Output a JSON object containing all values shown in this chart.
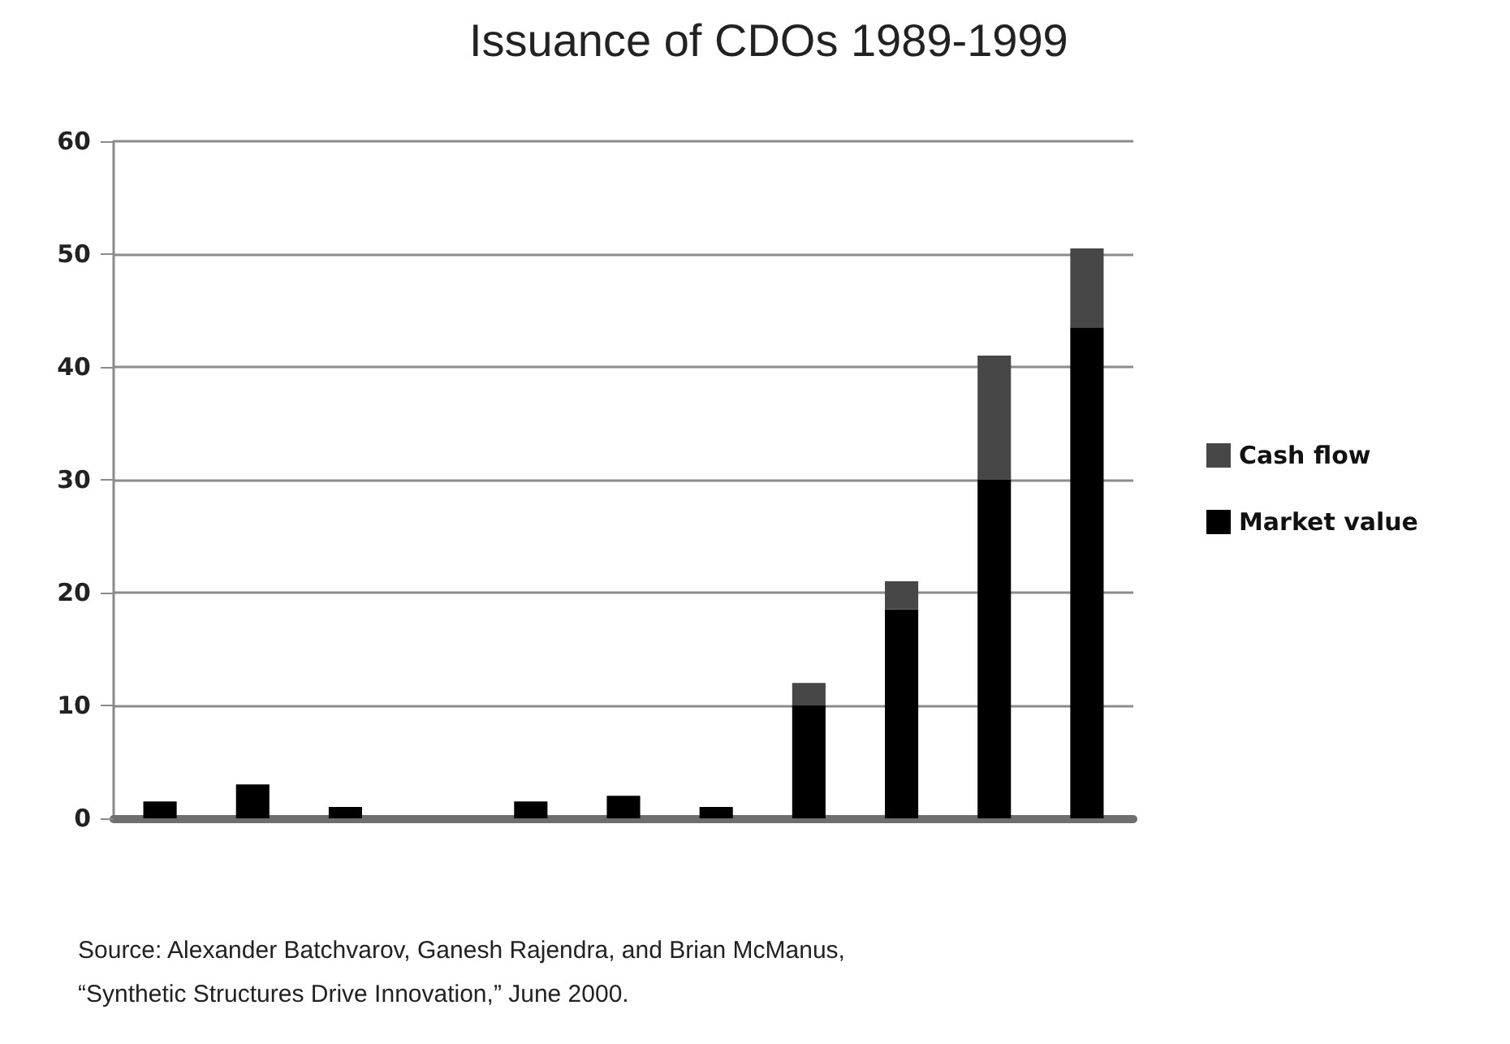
{
  "chart_data": {
    "type": "bar",
    "title": "Issuance of CDOs 1989-1999",
    "categories": [
      null,
      null,
      null,
      null,
      null,
      null,
      null,
      null,
      null,
      null,
      null
    ],
    "stacked": true,
    "series": [
      {
        "name": "Market value",
        "color": "#000000",
        "values": [
          1.5,
          3,
          1,
          0,
          1.5,
          2,
          1,
          10,
          18.5,
          30,
          43.5
        ]
      },
      {
        "name": "Cash flow",
        "color": "#474747",
        "values": [
          0,
          0,
          0,
          0,
          0,
          0,
          0,
          2,
          2.5,
          11,
          7
        ]
      }
    ],
    "ylim": [
      0,
      60
    ],
    "yticks": [
      0,
      10,
      20,
      30,
      40,
      50,
      60
    ],
    "grid": "y",
    "legend": "right",
    "tick_labels": "y",
    "annotations": [
      "Source: Alexander Batchvarov, Ganesh Rajendra, and Brian McManus,",
      "“Synthetic Structures Drive Innovation,” June 2000."
    ]
  }
}
